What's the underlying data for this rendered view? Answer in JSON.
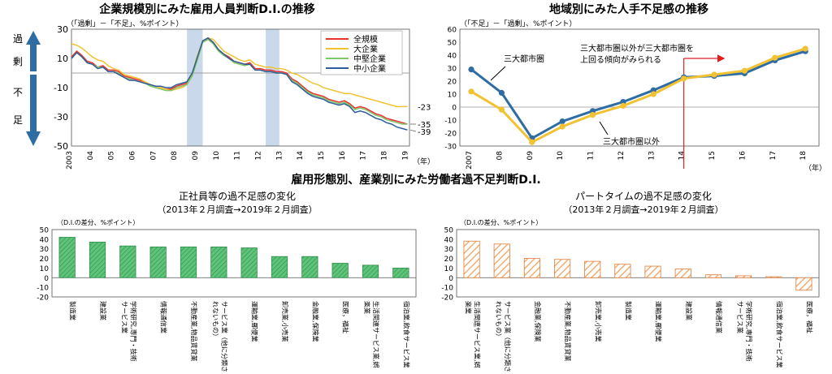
{
  "main_title_bottom": "雇用形態別、産業別にみた労働者過不足判断D.I.",
  "chart_data": [
    {
      "id": "firm_size",
      "type": "line",
      "title": "企業規模別にみた雇用人員判断D.I.の推移",
      "subtitle": "（「過剰」－「不足」、%ポイント）",
      "xlabel": "（年）",
      "ylim": [
        -50,
        30
      ],
      "yticks": [
        "30",
        "10",
        "-10",
        "-30",
        "-50"
      ],
      "xticks": [
        "2003",
        "04",
        "05",
        "06",
        "07",
        "08",
        "09",
        "10",
        "11",
        "12",
        "13",
        "14",
        "15",
        "16",
        "17",
        "18",
        "19"
      ],
      "side_labels": {
        "top": "過 剰",
        "bottom": "不 足"
      },
      "recessions": [
        [
          2008.5,
          2009.25
        ],
        [
          2012.25,
          2012.9
        ]
      ],
      "end_labels": [
        "-23",
        "-35",
        "-39"
      ],
      "legend_position": "top-right",
      "series": [
        {
          "name": "全規模",
          "color": "#e8322e",
          "x": [
            2003.0,
            2003.25,
            2003.5,
            2003.75,
            2004.0,
            2004.25,
            2004.5,
            2004.75,
            2005.0,
            2005.25,
            2005.5,
            2005.75,
            2006.0,
            2006.25,
            2006.5,
            2006.75,
            2007.0,
            2007.25,
            2007.5,
            2007.75,
            2008.0,
            2008.25,
            2008.5,
            2008.75,
            2009.0,
            2009.25,
            2009.5,
            2009.75,
            2010.0,
            2010.25,
            2010.5,
            2010.75,
            2011.0,
            2011.25,
            2011.5,
            2011.75,
            2012.0,
            2012.25,
            2012.5,
            2012.75,
            2013.0,
            2013.25,
            2013.5,
            2013.75,
            2014.0,
            2014.25,
            2014.5,
            2014.75,
            2015.0,
            2015.25,
            2015.5,
            2015.75,
            2016.0,
            2016.25,
            2016.5,
            2016.75,
            2017.0,
            2017.25,
            2017.5,
            2017.75,
            2018.0,
            2018.25,
            2018.5,
            2018.75,
            2019.0
          ],
          "y": [
            11,
            15,
            12,
            8,
            7,
            4,
            5,
            2,
            2,
            1,
            -2,
            -3,
            -4,
            -5,
            -6,
            -8,
            -9,
            -10,
            -11,
            -11,
            -9,
            -8,
            -7,
            -1,
            10,
            22,
            24,
            21,
            16,
            13,
            11,
            8,
            7,
            6,
            7,
            3,
            3,
            2,
            2,
            1,
            1,
            0,
            -4,
            -6,
            -9,
            -12,
            -14,
            -15,
            -16,
            -18,
            -19,
            -20,
            -19,
            -21,
            -24,
            -23,
            -24,
            -26,
            -28,
            -29,
            -31,
            -32,
            -33,
            -34,
            -35
          ]
        },
        {
          "name": "大企業",
          "color": "#f1c232",
          "x": [
            2003.0,
            2003.25,
            2003.5,
            2003.75,
            2004.0,
            2004.25,
            2004.5,
            2004.75,
            2005.0,
            2005.25,
            2005.5,
            2005.75,
            2006.0,
            2006.25,
            2006.5,
            2006.75,
            2007.0,
            2007.25,
            2007.5,
            2007.75,
            2008.0,
            2008.25,
            2008.5,
            2008.75,
            2009.0,
            2009.25,
            2009.5,
            2009.75,
            2010.0,
            2010.25,
            2010.5,
            2010.75,
            2011.0,
            2011.25,
            2011.5,
            2011.75,
            2012.0,
            2012.25,
            2012.5,
            2012.75,
            2013.0,
            2013.25,
            2013.5,
            2013.75,
            2014.0,
            2014.25,
            2014.5,
            2014.75,
            2015.0,
            2015.25,
            2015.5,
            2015.75,
            2016.0,
            2016.25,
            2016.5,
            2016.75,
            2017.0,
            2017.25,
            2017.5,
            2017.75,
            2018.0,
            2018.25,
            2018.5,
            2018.75,
            2019.0
          ],
          "y": [
            20,
            19,
            17,
            14,
            11,
            9,
            8,
            5,
            3,
            2,
            -1,
            -2,
            -3,
            -4,
            -6,
            -8,
            -9,
            -10,
            -11,
            -12,
            -11,
            -10,
            -8,
            0,
            12,
            22,
            24,
            23,
            19,
            15,
            13,
            11,
            9,
            8,
            9,
            6,
            5,
            4,
            4,
            3,
            3,
            2,
            0,
            -1,
            -3,
            -5,
            -7,
            -8,
            -10,
            -11,
            -12,
            -13,
            -14,
            -14,
            -15,
            -16,
            -17,
            -18,
            -19,
            -20,
            -21,
            -22,
            -23,
            -23,
            -23
          ]
        },
        {
          "name": "中堅企業",
          "color": "#7ec86b",
          "x": [
            2003.0,
            2003.25,
            2003.5,
            2003.75,
            2004.0,
            2004.25,
            2004.5,
            2004.75,
            2005.0,
            2005.25,
            2005.5,
            2005.75,
            2006.0,
            2006.25,
            2006.5,
            2006.75,
            2007.0,
            2007.25,
            2007.5,
            2007.75,
            2008.0,
            2008.25,
            2008.5,
            2008.75,
            2009.0,
            2009.25,
            2009.5,
            2009.75,
            2010.0,
            2010.25,
            2010.5,
            2010.75,
            2011.0,
            2011.25,
            2011.5,
            2011.75,
            2012.0,
            2012.25,
            2012.5,
            2012.75,
            2013.0,
            2013.25,
            2013.5,
            2013.75,
            2014.0,
            2014.25,
            2014.5,
            2014.75,
            2015.0,
            2015.25,
            2015.5,
            2015.75,
            2016.0,
            2016.25,
            2016.5,
            2016.75,
            2017.0,
            2017.25,
            2017.5,
            2017.75,
            2018.0,
            2018.25,
            2018.5,
            2018.75,
            2019.0
          ],
          "y": [
            10,
            14,
            11,
            7,
            6,
            4,
            4,
            1,
            1,
            0,
            -3,
            -4,
            -5,
            -6,
            -7,
            -9,
            -10,
            -11,
            -12,
            -12,
            -10,
            -9,
            -8,
            -2,
            9,
            21,
            23,
            20,
            15,
            12,
            10,
            7,
            6,
            5,
            6,
            2,
            2,
            1,
            1,
            0,
            0,
            -1,
            -5,
            -7,
            -10,
            -13,
            -15,
            -16,
            -17,
            -19,
            -20,
            -21,
            -20,
            -22,
            -25,
            -24,
            -25,
            -27,
            -29,
            -30,
            -32,
            -33,
            -34,
            -35,
            -35
          ]
        },
        {
          "name": "中小企業",
          "color": "#2e5c9a",
          "x": [
            2003.0,
            2003.25,
            2003.5,
            2003.75,
            2004.0,
            2004.25,
            2004.5,
            2004.75,
            2005.0,
            2005.25,
            2005.5,
            2005.75,
            2006.0,
            2006.25,
            2006.5,
            2006.75,
            2007.0,
            2007.25,
            2007.5,
            2007.75,
            2008.0,
            2008.25,
            2008.5,
            2008.75,
            2009.0,
            2009.25,
            2009.5,
            2009.75,
            2010.0,
            2010.25,
            2010.5,
            2010.75,
            2011.0,
            2011.25,
            2011.5,
            2011.75,
            2012.0,
            2012.25,
            2012.5,
            2012.75,
            2013.0,
            2013.25,
            2013.5,
            2013.75,
            2014.0,
            2014.25,
            2014.5,
            2014.75,
            2015.0,
            2015.25,
            2015.5,
            2015.75,
            2016.0,
            2016.25,
            2016.5,
            2016.75,
            2017.0,
            2017.25,
            2017.5,
            2017.75,
            2018.0,
            2018.25,
            2018.5,
            2018.75,
            2019.0
          ],
          "y": [
            10,
            14,
            11,
            7,
            6,
            3,
            4,
            1,
            1,
            -1,
            -3,
            -5,
            -5,
            -6,
            -7,
            -8,
            -9,
            -9,
            -10,
            -10,
            -8,
            -7,
            -6,
            0,
            11,
            22,
            24,
            21,
            16,
            13,
            10,
            8,
            7,
            6,
            6,
            2,
            2,
            1,
            1,
            0,
            0,
            -1,
            -6,
            -8,
            -11,
            -14,
            -16,
            -17,
            -18,
            -20,
            -21,
            -22,
            -21,
            -23,
            -27,
            -26,
            -27,
            -29,
            -31,
            -32,
            -34,
            -35,
            -37,
            -38,
            -39
          ]
        }
      ]
    },
    {
      "id": "region",
      "type": "line",
      "title": "地域別にみた人手不足感の推移",
      "subtitle": "（「不足」－「過剰」、%ポイント）",
      "xlabel": "（年）",
      "ylim": [
        -30,
        60
      ],
      "yticks": [
        "60",
        "50",
        "40",
        "30",
        "20",
        "10",
        "0",
        "-10",
        "-20",
        "-30"
      ],
      "xticks": [
        "2007",
        "08",
        "09",
        "10",
        "11",
        "12",
        "13",
        "14",
        "15",
        "16",
        "17",
        "18"
      ],
      "annotation": {
        "text": [
          "三大都市圏以外が三大都市圏を",
          "上回る傾向がみられる"
        ],
        "color": "#e02020",
        "vline_x": 2014
      },
      "series": [
        {
          "name": "三大都市圏",
          "color": "#2e6ca4",
          "x": [
            2007,
            2008,
            2009,
            2010,
            2011,
            2012,
            2013,
            2014,
            2015,
            2016,
            2017,
            2018
          ],
          "y": [
            29,
            11,
            -24,
            -11,
            -3,
            4,
            13,
            23,
            24,
            26,
            36,
            43
          ]
        },
        {
          "name": "三大都市圏以外",
          "color": "#f1c232",
          "x": [
            2007,
            2008,
            2009,
            2010,
            2011,
            2012,
            2013,
            2014,
            2015,
            2016,
            2017,
            2018
          ],
          "y": [
            12,
            -2,
            -27,
            -15,
            -6,
            1,
            10,
            22,
            25,
            28,
            38,
            45
          ]
        }
      ]
    },
    {
      "id": "regular",
      "type": "bar",
      "title": "正社員等の過不足感の変化",
      "subtitle": "（2013年２月調査→2019年２月調査）",
      "ylabel": "（D.I.の差分、%ポイント）",
      "ylim": [
        -20,
        50
      ],
      "yticks": [
        "50",
        "40",
        "30",
        "20",
        "10",
        "0",
        "-10",
        "-20"
      ],
      "fill": "hatched-green",
      "categories": [
        [
          "製造業"
        ],
        [
          "建設業"
        ],
        [
          "学術研究,専門・技術",
          "サービス業"
        ],
        [
          "情報通信業"
        ],
        [
          "不動産業,物品賃貸業"
        ],
        [
          "サービス業（他に分類さ",
          "れないもの）"
        ],
        [
          "運輸業,郵便業"
        ],
        [
          "卸売業,小売業"
        ],
        [
          "金融業,保険業"
        ],
        [
          "医療，福祉"
        ],
        [
          "生活関連サービス業,娯",
          "楽業"
        ],
        [
          "宿泊業,飲食サービス業"
        ]
      ],
      "values": [
        42,
        37,
        33,
        32,
        32,
        32,
        31,
        22,
        22,
        15,
        13,
        10
      ]
    },
    {
      "id": "parttime",
      "type": "bar",
      "title": "パートタイムの過不足感の変化",
      "subtitle": "（2013年２月調査→2019年２月調査）",
      "ylabel": "（D.I.の差分、%ポイント）",
      "ylim": [
        -20,
        50
      ],
      "yticks": [
        "50",
        "40",
        "30",
        "20",
        "10",
        "0",
        "-10",
        "-20"
      ],
      "fill": "hatched-orange",
      "categories": [
        [
          "生活関連サービス業,娯",
          "楽業"
        ],
        [
          "サービス業（他に分類さ",
          "れないもの）"
        ],
        [
          "金融業,保険業"
        ],
        [
          "不動産業,物品賃貸業"
        ],
        [
          "卸売業,小売業"
        ],
        [
          "製造業"
        ],
        [
          "運輸業,郵便業"
        ],
        [
          "建設業"
        ],
        [
          "情報通信業"
        ],
        [
          "学術研究,専門・技術",
          "サービス業"
        ],
        [
          "宿泊業,飲食サービス業"
        ],
        [
          "医療，福祉"
        ]
      ],
      "values": [
        38,
        35,
        20,
        19,
        17,
        14,
        12,
        9,
        3,
        2,
        1,
        -13
      ]
    }
  ]
}
